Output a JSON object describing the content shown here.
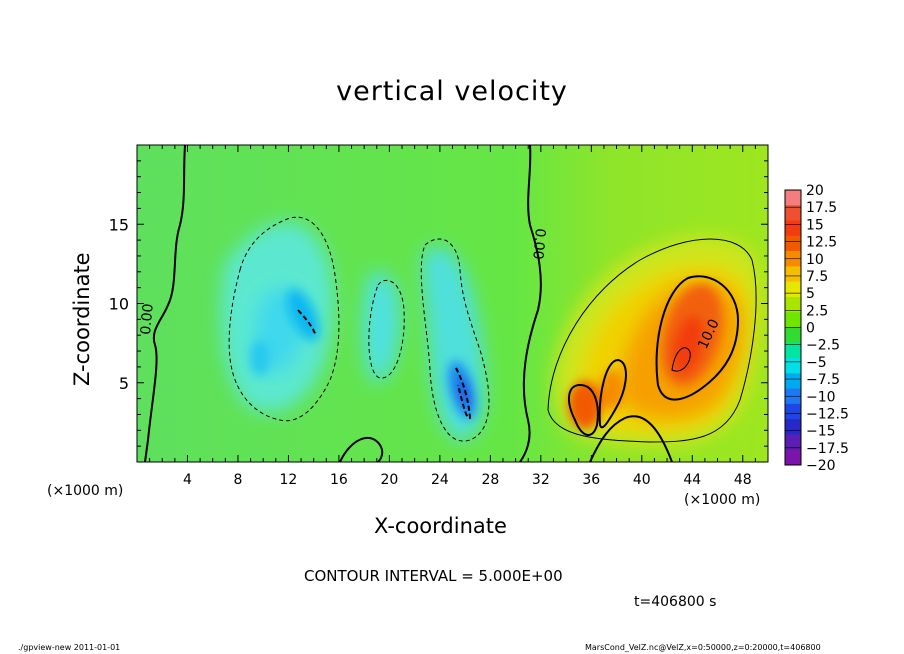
{
  "title": "vertical velocity",
  "xlabel": "X-coordinate",
  "ylabel": "Z-coordinate",
  "x_unit_left": "(×1000 m)",
  "x_unit_right": "(×1000 m)",
  "contour_interval": "CONTOUR INTERVAL = 5.000E+00",
  "time_stamp": "t=406800  s",
  "footer_left": "./gpview-new   2011-01-01",
  "footer_right": "MarsCond_VelZ.nc@VelZ,x=0:50000,z=0:20000,t=406800",
  "chart_data": {
    "type": "heatmap",
    "title": "vertical velocity",
    "xlabel": "X-coordinate",
    "ylabel": "Z-coordinate",
    "x_unit": "(×1000 m)",
    "xlim": [
      0,
      50
    ],
    "ylim": [
      0,
      20
    ],
    "x_ticks": [
      4,
      8,
      12,
      16,
      20,
      24,
      28,
      32,
      36,
      40,
      44,
      48
    ],
    "y_ticks": [
      5,
      10,
      15
    ],
    "contour_interval": 5.0,
    "contour_labels": [
      "0.00",
      "0.00",
      "10.0"
    ],
    "colorbar": {
      "labels": [
        "20",
        "17.5",
        "15",
        "12.5",
        "10",
        "7.5",
        "5",
        "2.5",
        "0",
        "−2.5",
        "−5",
        "−7.5",
        "−10",
        "−12.5",
        "−15",
        "−17.5",
        "−20"
      ],
      "values": [
        20,
        17.5,
        15,
        12.5,
        10,
        7.5,
        5,
        2.5,
        0,
        -2.5,
        -5,
        -7.5,
        -10,
        -12.5,
        -15,
        -17.5,
        -20
      ],
      "colors": [
        "#f47d7d",
        "#ef5030",
        "#f23c10",
        "#f25a00",
        "#f58c00",
        "#f5be00",
        "#e6e600",
        "#a8e600",
        "#6ee600",
        "#2fdc2f",
        "#00e6a0",
        "#00e0e6",
        "#00aaf0",
        "#1e78f0",
        "#1e46e6",
        "#2828c8",
        "#5a1eb4",
        "#7a14aa"
      ]
    },
    "features": [
      {
        "name": "updraft core",
        "x": 43.5,
        "z": 7.5,
        "peak": 15
      },
      {
        "name": "updraft lobe",
        "x": 35,
        "z": 3.5,
        "peak": 12.5
      },
      {
        "name": "downdraft",
        "x": 26,
        "z": 4.5,
        "peak": -12.5
      },
      {
        "name": "downdraft",
        "x": 13.5,
        "z": 9,
        "peak": -10
      }
    ]
  }
}
